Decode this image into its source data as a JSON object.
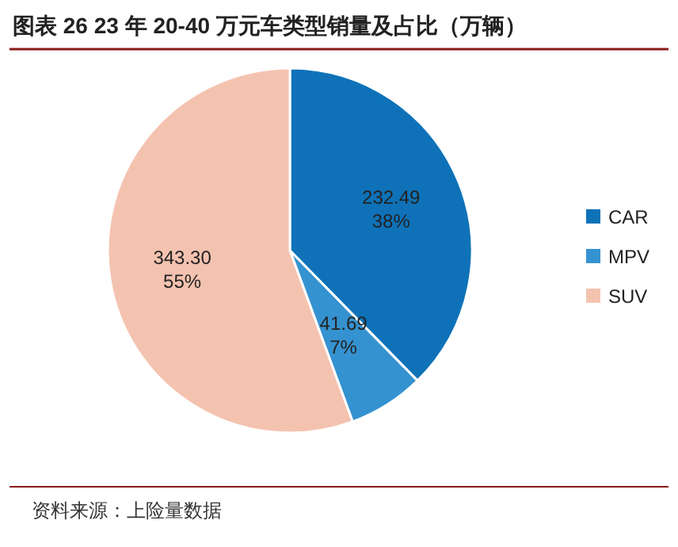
{
  "chart_data": {
    "type": "pie",
    "title": "图表 26 23 年 20-40 万元车类型销量及占比（万辆）",
    "categories": [
      "CAR",
      "MPV",
      "SUV"
    ],
    "values": [
      232.49,
      41.69,
      343.3
    ],
    "colors": [
      "#0f72b8",
      "#3592d0",
      "#f4c3b0"
    ],
    "value_labels": [
      "232.49\n38%",
      "41.69\n7%",
      "343.30\n55%"
    ],
    "legend": "right",
    "annotations": [
      "资料来源：上险量数据"
    ]
  }
}
